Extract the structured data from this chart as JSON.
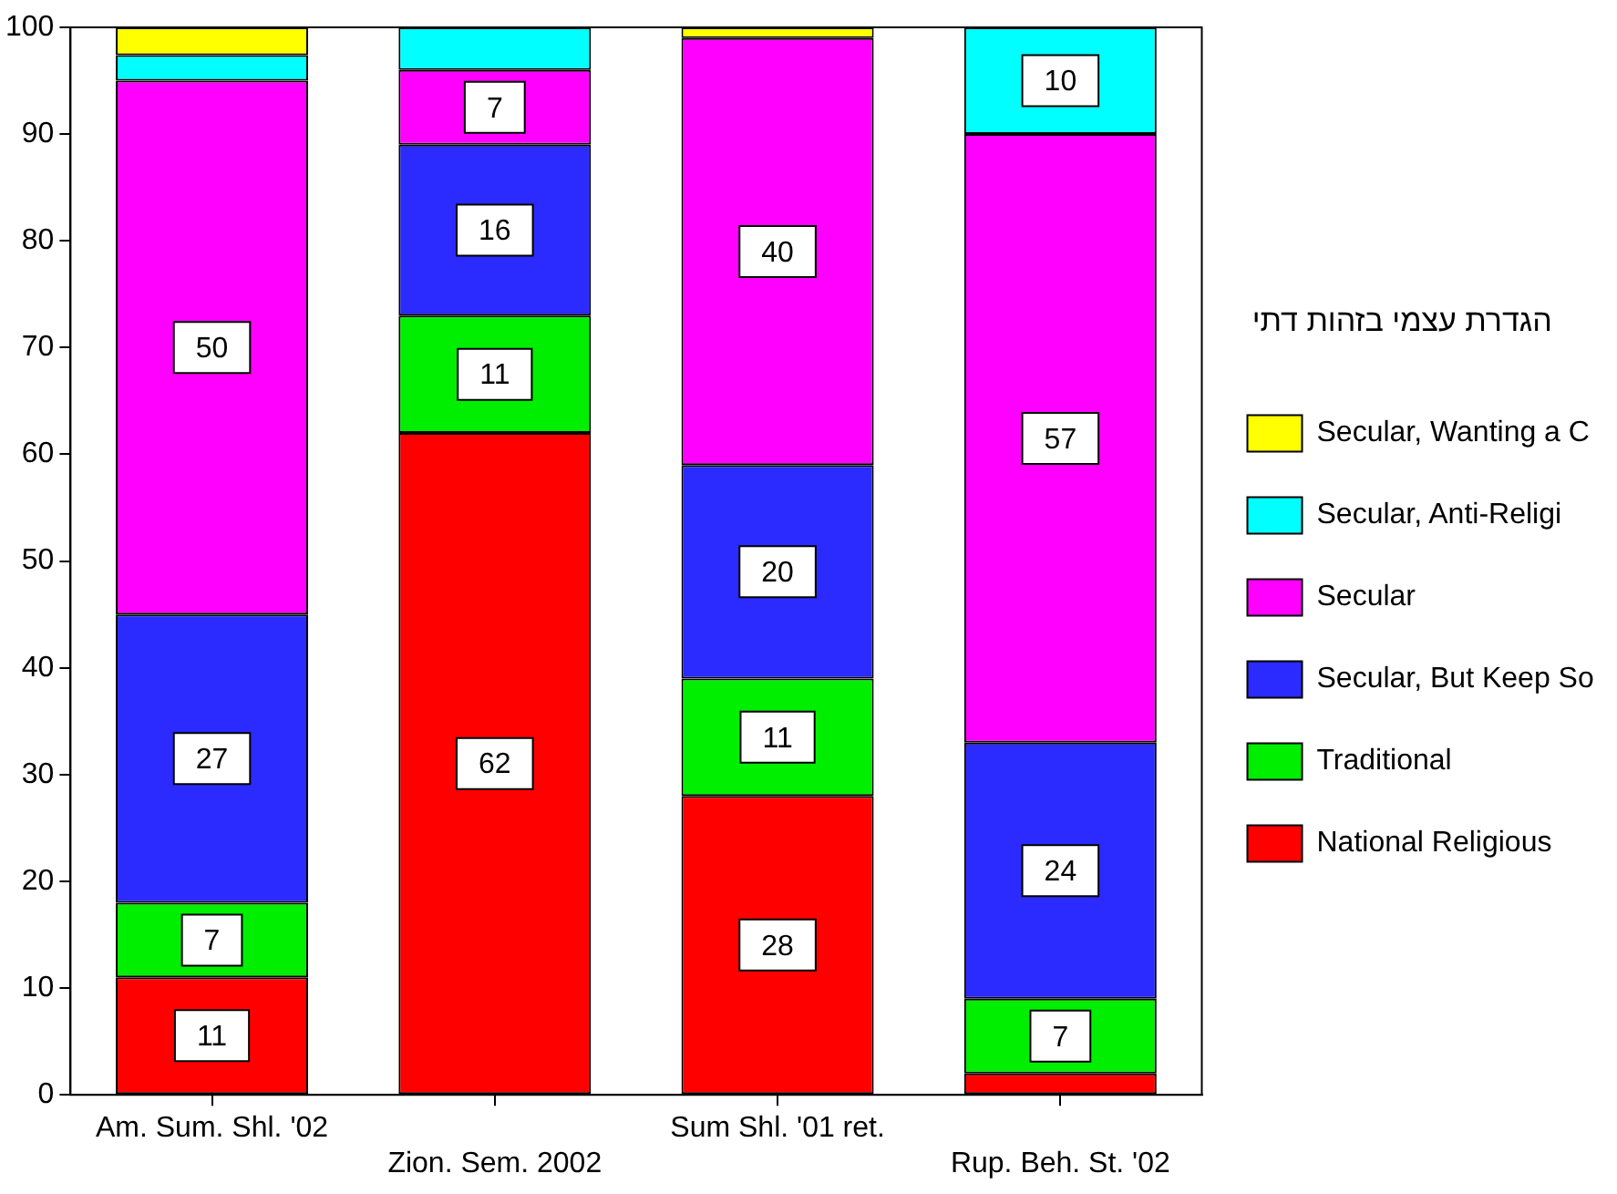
{
  "chart_data": {
    "type": "bar",
    "stacked": true,
    "categories": [
      "Am. Sum. Shl. '02",
      "Zion. Sem. 2002",
      "Sum Shl. '01 ret.",
      "Rup. Beh. St. '02"
    ],
    "ylim": [
      0,
      100
    ],
    "yticks": [
      0,
      10,
      20,
      30,
      40,
      50,
      60,
      70,
      80,
      90,
      100
    ],
    "grid": false,
    "legend": "right",
    "legend_title": "הגדרת עצמי בזהות דתי",
    "series": [
      {
        "name": "National Religious",
        "color": "#ff0000",
        "values": [
          11,
          62,
          28,
          2
        ],
        "value_labels": [
          "11",
          "62",
          "28",
          null
        ]
      },
      {
        "name": "Traditional",
        "color": "#00ee00",
        "values": [
          7,
          11,
          11,
          7
        ],
        "value_labels": [
          "7",
          "11",
          "11",
          "7"
        ]
      },
      {
        "name": "Secular, But Keep So",
        "color": "#2b2bff",
        "values": [
          27,
          16,
          20,
          24
        ],
        "value_labels": [
          "27",
          "16",
          "20",
          "24"
        ]
      },
      {
        "name": "Secular",
        "color": "#ff00ff",
        "values": [
          50,
          7,
          40,
          57
        ],
        "value_labels": [
          "50",
          "7",
          "40",
          "57"
        ]
      },
      {
        "name": "Secular, Anti-Religi",
        "color": "#00ffff",
        "values": [
          2.4,
          4,
          0,
          10
        ],
        "value_labels": [
          null,
          null,
          null,
          "10"
        ]
      },
      {
        "name": "Secular, Wanting a C",
        "color": "#ffff00",
        "values": [
          2.6,
          0,
          1,
          0
        ],
        "value_labels": [
          null,
          null,
          null,
          null
        ]
      }
    ]
  }
}
